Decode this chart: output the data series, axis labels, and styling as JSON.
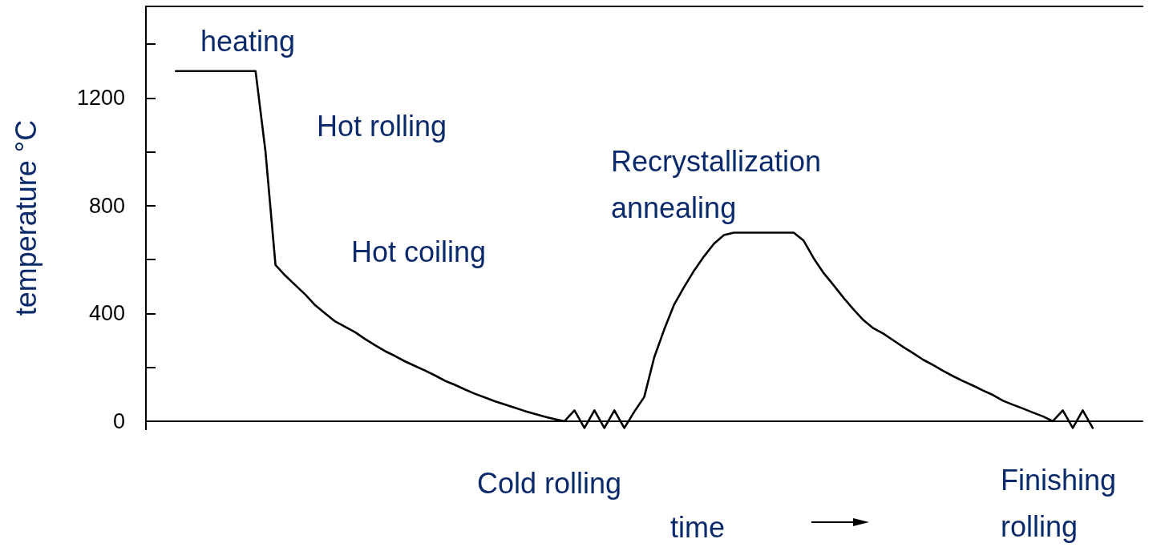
{
  "chart_data": {
    "type": "line",
    "ylabel": "temperature °C",
    "xlabel": "time",
    "categories": [
      null,
      null,
      null,
      null,
      null,
      null,
      null,
      null,
      null,
      null,
      null,
      null,
      null,
      null,
      null,
      null,
      null,
      null,
      null,
      null,
      null,
      null,
      null,
      null,
      null,
      null,
      null,
      null,
      null,
      null,
      null,
      null,
      null,
      null,
      null,
      null,
      null,
      null,
      null,
      null,
      null,
      null,
      null,
      null,
      null,
      null,
      null,
      null,
      null,
      null,
      null,
      null,
      null,
      null,
      null,
      null,
      null,
      null,
      null,
      null,
      null,
      null,
      null,
      null,
      null,
      null,
      null,
      null,
      null,
      null,
      null,
      null,
      null,
      null,
      null,
      null,
      null,
      null,
      null,
      null,
      null,
      null,
      null,
      null,
      null,
      null,
      null,
      null,
      null,
      null,
      null,
      null,
      null,
      null,
      null,
      null,
      null,
      null,
      null,
      null,
      null
    ],
    "series": [
      {
        "color": "#000000",
        "values": [
          null,
          null,
          null,
          1300,
          1300,
          1300,
          1300,
          1300,
          1300,
          1300,
          1300,
          1300,
          1000,
          580,
          540,
          505,
          470,
          430,
          400,
          370,
          350,
          330,
          305,
          282,
          260,
          242,
          222,
          205,
          188,
          170,
          150,
          135,
          118,
          102,
          88,
          74,
          62,
          50,
          38,
          27,
          17,
          8,
          0,
          40,
          -25,
          40,
          -25,
          40,
          -25,
          35,
          90,
          237,
          340,
          433,
          498,
          559,
          612,
          659,
          691,
          700,
          700,
          700,
          700,
          700,
          700,
          700,
          670,
          605,
          550,
          505,
          458,
          415,
          375,
          345,
          325,
          300,
          275,
          252,
          228,
          208,
          187,
          167,
          149,
          132,
          114,
          97,
          76,
          61,
          47,
          32,
          18,
          0,
          40,
          -25,
          40,
          -25,
          null,
          null,
          null,
          null,
          null
        ]
      }
    ],
    "ylim": [
      -30,
      1540
    ],
    "yticks": [
      0,
      {
        "value": 200,
        "label": null
      },
      400,
      {
        "value": 600,
        "label": null
      },
      800,
      {
        "value": 1000,
        "label": null
      },
      1200,
      {
        "value": 1400,
        "label": null
      }
    ],
    "marker": "none",
    "line_style": "solid",
    "annotations": [
      "heating",
      "Hot rolling",
      "Hot coiling",
      "Recrystallization annealing",
      "Cold rolling",
      "Finishing rolling"
    ]
  }
}
